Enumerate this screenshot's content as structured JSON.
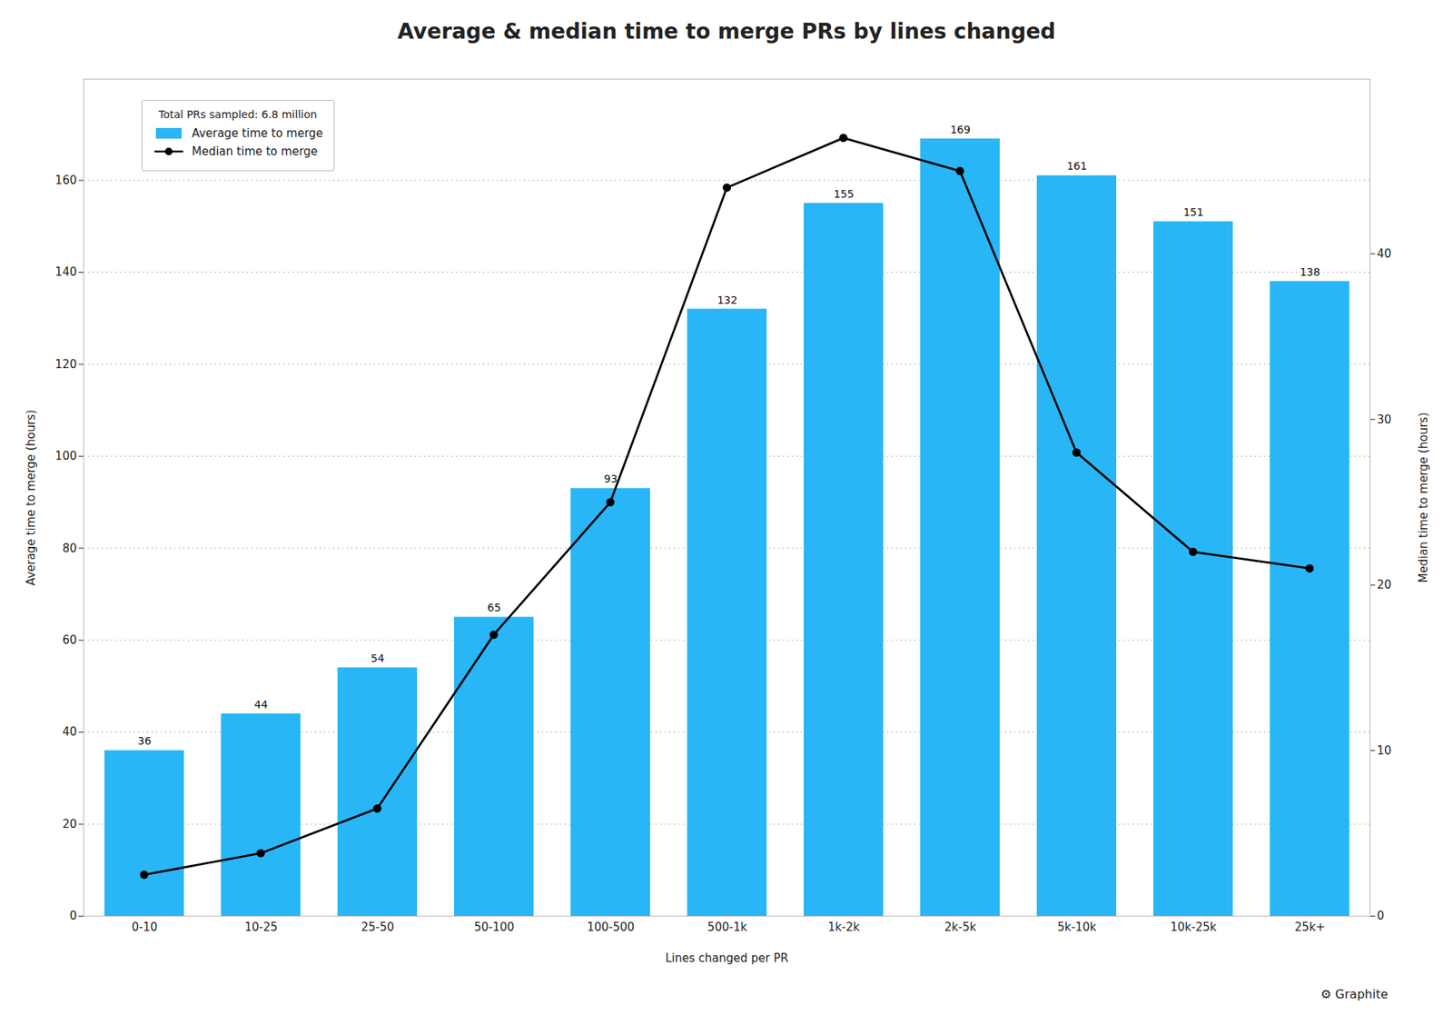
{
  "chart_data": {
    "type": "bar",
    "title": "Average & median time to merge PRs by lines changed",
    "categories": [
      "0-10",
      "10-25",
      "25-50",
      "50-100",
      "100-500",
      "500-1k",
      "1k-2k",
      "2k-5k",
      "5k-10k",
      "10k-25k",
      "25k+"
    ],
    "series": [
      {
        "name": "Average time to merge",
        "type": "bar",
        "color": "#29b6f6",
        "data_labels": true,
        "values": [
          36,
          44,
          54,
          65,
          93,
          132,
          155,
          169,
          161,
          151,
          138
        ]
      },
      {
        "name": "Median time to merge",
        "type": "line",
        "color": "#000000",
        "marker": "circle",
        "line_style": "solid",
        "axis": "y2",
        "values": [
          2.5,
          3.8,
          6.5,
          17,
          25,
          44,
          47,
          45,
          28,
          22,
          21
        ]
      }
    ],
    "xlabel": "Lines changed per PR",
    "ylabel": "Average time to merge (hours)",
    "y2label": "Median time to merge (hours)",
    "ylim": [
      0,
      182
    ],
    "yticks": [
      0,
      20,
      40,
      60,
      80,
      100,
      120,
      140,
      160
    ],
    "y2lim": [
      0,
      50.55
    ],
    "y2ticks": [
      0,
      10,
      20,
      30,
      40
    ],
    "grid": true,
    "legend": "upper left",
    "legend_title": "Total PRs sampled: 6.8 million",
    "annotations": [
      "⚙ Graphite"
    ]
  }
}
